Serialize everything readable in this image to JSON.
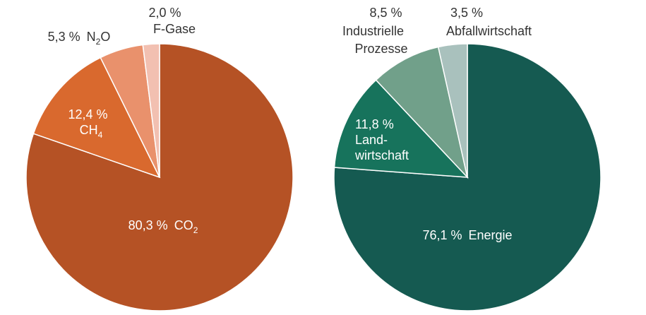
{
  "chart_data": [
    {
      "type": "pie",
      "start_angle_deg": 0,
      "direction": "clockwise",
      "slices": [
        {
          "value": 80.3,
          "color": "#b55225",
          "label_value": "80,3 %",
          "label_name": "CO",
          "label_sub": "2",
          "label_pos": "inside"
        },
        {
          "value": 12.4,
          "color": "#d9692e",
          "label_value": "12,4 %",
          "label_name": "CH",
          "label_sub": "4",
          "label_pos": "inside"
        },
        {
          "value": 5.3,
          "color": "#e9916c",
          "label_value": "5,3 %",
          "label_name": "N",
          "label_sub": "2",
          "label_name_after": "O",
          "label_pos": "outside"
        },
        {
          "value": 2.0,
          "color": "#f2c0b1",
          "label_value": "2,0 %",
          "label_name": "F-Gase",
          "label_pos": "outside"
        }
      ]
    },
    {
      "type": "pie",
      "start_angle_deg": 0,
      "direction": "clockwise",
      "slices": [
        {
          "value": 76.1,
          "color": "#155a51",
          "label_value": "76,1 %",
          "label_name": "Energie",
          "label_pos": "inside"
        },
        {
          "value": 11.8,
          "color": "#17735c",
          "label_value": "11,8 %",
          "label_name": "Land-",
          "label_name2": "wirtschaft",
          "label_pos": "inside"
        },
        {
          "value": 8.5,
          "color": "#71a08a",
          "label_value": "8,5 %",
          "label_name": "Industrielle",
          "label_name2": "Prozesse",
          "label_pos": "outside"
        },
        {
          "value": 3.5,
          "color": "#a9c1bd",
          "label_value": "3,5 %",
          "label_name": "Abfallwirtschaft",
          "label_pos": "outside"
        }
      ]
    }
  ]
}
